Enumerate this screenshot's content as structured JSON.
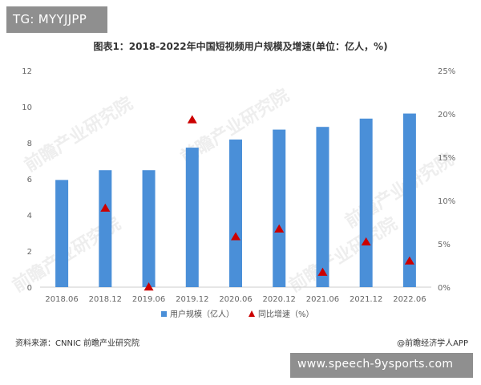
{
  "badge": {
    "text": "TG: MYYJJPP"
  },
  "footer": {
    "source": "资料来源：CNNIC 前瞻产业研究院",
    "brand": "@前瞻经济学人APP"
  },
  "url_badge": {
    "text": "www.speech-9ysports.com"
  },
  "watermark": {
    "text": "前瞻产业研究院"
  },
  "colors": {
    "bar": "#4a8fd8",
    "marker": "#cc0000",
    "axis": "#cccccc"
  },
  "chart_data": {
    "type": "bar",
    "title": "图表1：2018-2022年中国短视频用户规模及增速(单位：亿人，%)",
    "categories": [
      "2018.06",
      "2018.12",
      "2019.06",
      "2019.12",
      "2020.06",
      "2020.12",
      "2021.06",
      "2021.12",
      "2022.06"
    ],
    "series": [
      {
        "name": "用户规模（亿人）",
        "kind": "bar",
        "axis": "left",
        "values": [
          5.94,
          6.48,
          6.48,
          7.73,
          8.18,
          8.73,
          8.88,
          9.34,
          9.62
        ]
      },
      {
        "name": "同比增速（%）",
        "kind": "triangle-marker",
        "axis": "right",
        "values": [
          null,
          9.1,
          0.0,
          19.3,
          5.8,
          6.7,
          1.7,
          5.2,
          3.0
        ]
      }
    ],
    "y_left": {
      "ylim": [
        0,
        12
      ],
      "ticks": [
        "0",
        "2",
        "4",
        "6",
        "8",
        "10",
        "12"
      ]
    },
    "y_right": {
      "ylim": [
        0,
        25
      ],
      "ticks": [
        "0%",
        "5%",
        "10%",
        "15%",
        "20%",
        "25%"
      ]
    },
    "grid": false,
    "legend_position": "bottom-center"
  }
}
